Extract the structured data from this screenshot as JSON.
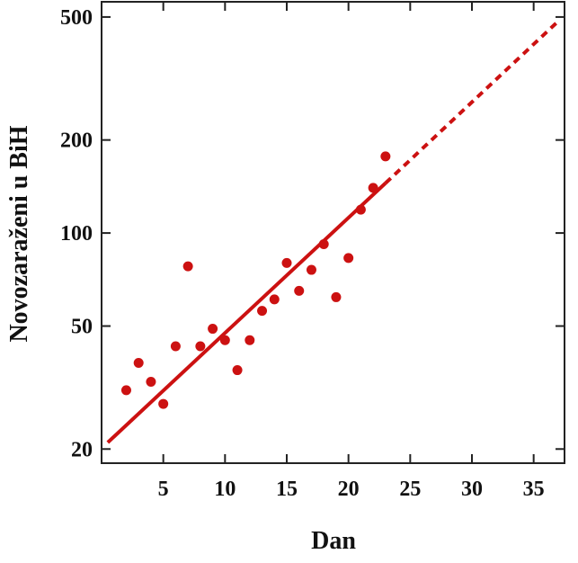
{
  "chart_data": {
    "type": "scatter",
    "xlabel": "Dan",
    "ylabel": "Novozaraženi u BiH",
    "xlim": [
      0,
      37.5
    ],
    "ylim": [
      18,
      560
    ],
    "yscale": "log",
    "grid": false,
    "legend": "none",
    "x_ticks": [
      5,
      10,
      15,
      20,
      25,
      30,
      35
    ],
    "y_ticks": [
      20,
      50,
      100,
      200,
      500
    ],
    "x_tick_labels": [
      "5",
      "10",
      "15",
      "20",
      "25",
      "30",
      "35"
    ],
    "y_tick_labels": [
      "20",
      "50",
      "100",
      "200",
      "500"
    ],
    "points": [
      {
        "x": 2,
        "y": 31
      },
      {
        "x": 3,
        "y": 38
      },
      {
        "x": 4,
        "y": 33
      },
      {
        "x": 5,
        "y": 28
      },
      {
        "x": 6,
        "y": 43
      },
      {
        "x": 7,
        "y": 78
      },
      {
        "x": 8,
        "y": 43
      },
      {
        "x": 9,
        "y": 49
      },
      {
        "x": 10,
        "y": 45
      },
      {
        "x": 11,
        "y": 36
      },
      {
        "x": 12,
        "y": 45
      },
      {
        "x": 13,
        "y": 56
      },
      {
        "x": 14,
        "y": 61
      },
      {
        "x": 15,
        "y": 80
      },
      {
        "x": 16,
        "y": 65
      },
      {
        "x": 17,
        "y": 76
      },
      {
        "x": 18,
        "y": 92
      },
      {
        "x": 19,
        "y": 62
      },
      {
        "x": 20,
        "y": 83
      },
      {
        "x": 21,
        "y": 119
      },
      {
        "x": 22,
        "y": 140
      },
      {
        "x": 23,
        "y": 177
      }
    ],
    "fit_line": {
      "solid": [
        {
          "x": 0.5,
          "y": 21
        },
        {
          "x": 23,
          "y": 145
        }
      ],
      "dashed": [
        {
          "x": 23,
          "y": 145
        },
        {
          "x": 37,
          "y": 485
        }
      ]
    },
    "colors": {
      "series": "#cc1111",
      "axis": "#222222"
    }
  }
}
